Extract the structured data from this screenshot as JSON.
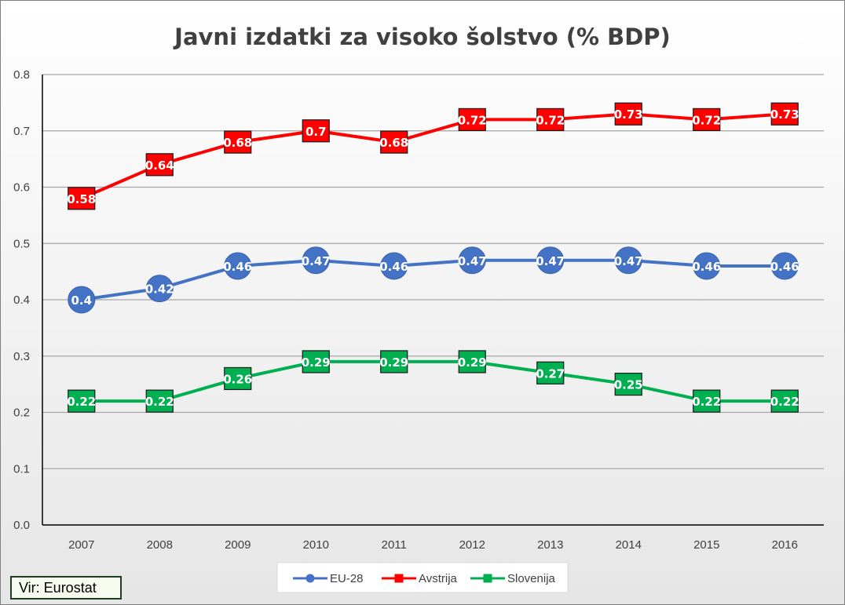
{
  "chart_data": {
    "type": "line",
    "title": "Javni izdatki za visoko šolstvo (% BDP)",
    "xlabel": "",
    "ylabel": "",
    "categories": [
      "2007",
      "2008",
      "2009",
      "2010",
      "2011",
      "2012",
      "2013",
      "2014",
      "2015",
      "2016"
    ],
    "ylim": [
      0,
      0.8
    ],
    "yticks": [
      "0.0",
      "0.1",
      "0.2",
      "0.3",
      "0.4",
      "0.5",
      "0.6",
      "0.7",
      "0.8"
    ],
    "grid": true,
    "legend_position": "bottom",
    "series": [
      {
        "name": "EU-28",
        "marker": "circle",
        "color": "#4472c4",
        "values": [
          0.4,
          0.42,
          0.46,
          0.47,
          0.46,
          0.47,
          0.47,
          0.47,
          0.46,
          0.46
        ],
        "labels": [
          "0.4",
          "0.42",
          "0.46",
          "0.47",
          "0.46",
          "0.47",
          "0.47",
          "0.47",
          "0.46",
          "0.46"
        ]
      },
      {
        "name": "Avstrija",
        "marker": "square",
        "color": "#ff0000",
        "values": [
          0.58,
          0.64,
          0.68,
          0.7,
          0.68,
          0.72,
          0.72,
          0.73,
          0.72,
          0.73
        ],
        "labels": [
          "0.58",
          "0.64",
          "0.68",
          "0.7",
          "0.68",
          "0.72",
          "0.72",
          "0.73",
          "0.72",
          "0.73"
        ]
      },
      {
        "name": "Slovenija",
        "marker": "square",
        "color": "#00b050",
        "values": [
          0.22,
          0.22,
          0.26,
          0.29,
          0.29,
          0.29,
          0.27,
          0.25,
          0.22,
          0.22
        ],
        "labels": [
          "0.22",
          "0.22",
          "0.26",
          "0.29",
          "0.29",
          "0.29",
          "0.27",
          "0.25",
          "0.22",
          "0.22"
        ]
      }
    ]
  },
  "source": "Vir: Eurostat"
}
